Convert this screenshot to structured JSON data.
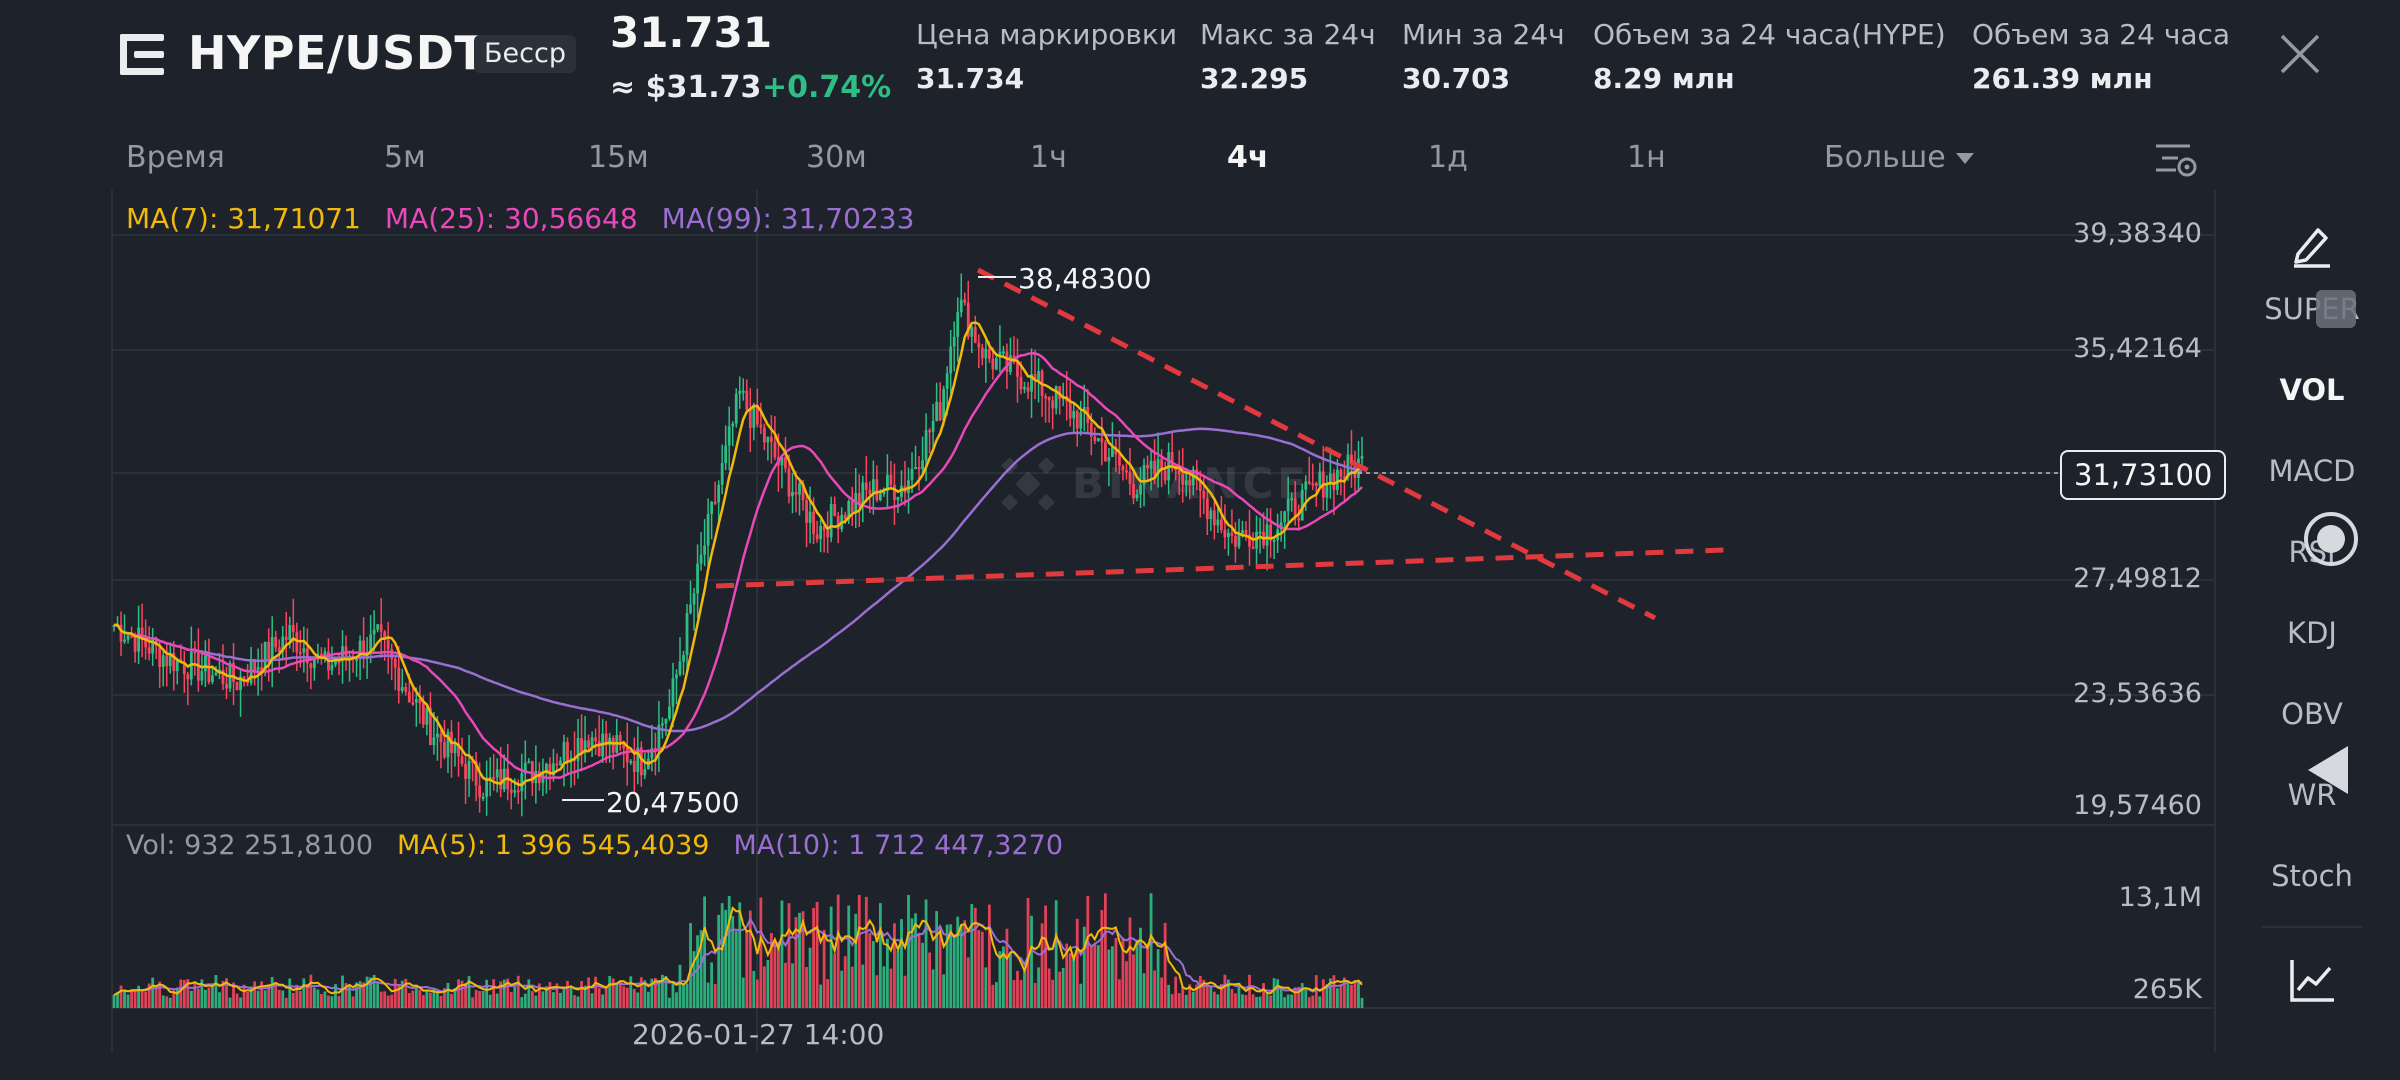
{
  "header": {
    "pair": "HYPE/USDT",
    "contract_badge": "Бесср",
    "last_price": "31.731",
    "usd_price": "≈ $31.73",
    "change_pct": "+0.74%",
    "stats": [
      {
        "label": "Цена маркировки",
        "value": "31.734"
      },
      {
        "label": "Макс за 24ч",
        "value": "32.295"
      },
      {
        "label": "Мин за 24ч",
        "value": "30.703"
      },
      {
        "label": "Объем за 24 часа(HYPE)",
        "value": "8.29 млн"
      },
      {
        "label": "Объем за 24 часа(",
        "value": "261.39 млн"
      }
    ]
  },
  "intervals": {
    "items": [
      "Время",
      "5м",
      "15м",
      "30м",
      "1ч",
      "4ч",
      "1д",
      "1н"
    ],
    "active": "4ч",
    "more_label": "Больше"
  },
  "price_legend": {
    "ma7": "MA(7): 31,71071",
    "ma25": "MA(25): 30,56648",
    "ma99": "MA(99): 31,70233"
  },
  "volume_legend": {
    "vol": "Vol: 932 251,8100",
    "ma5": "MA(5): 1 396 545,4039",
    "ma10": "MA(10): 1 712 447,3270"
  },
  "price_axis": [
    "39,38340",
    "35,42164",
    "31,73100",
    "27,49812",
    "23,53636",
    "19,57460"
  ],
  "volume_axis": [
    "13,1M",
    "265K"
  ],
  "time_axis_label": "2026-01-27 14:00",
  "annotations": {
    "high": "38,48300",
    "low": "20,47500"
  },
  "current_price_tag": "31,73100",
  "side_panel": {
    "items": [
      "SUPER",
      "VOL",
      "MACD",
      "RSI",
      "KDJ",
      "OBV",
      "WR",
      "Stoch"
    ],
    "active": "VOL"
  },
  "colors": {
    "up": "#2ebd85",
    "down": "#f6465d",
    "ma7": "#f0b90b",
    "ma25": "#e74ab8",
    "ma99": "#9a6fd1",
    "trendline": "#e03a3e",
    "background": "#1e222b"
  },
  "chart_data": {
    "type": "candlestick",
    "interval": "4ч",
    "price_axis_ticks": [
      39.3834,
      35.42164,
      31.731,
      27.49812,
      23.53636,
      19.5746
    ],
    "high": 38.483,
    "low": 20.475,
    "last": 31.731,
    "indicators": [
      "MA(7)",
      "MA(25)",
      "MA(99)"
    ],
    "volume_indicators": [
      "MA(5)",
      "MA(10)"
    ],
    "grid": true,
    "watermark": "BINANCE"
  }
}
